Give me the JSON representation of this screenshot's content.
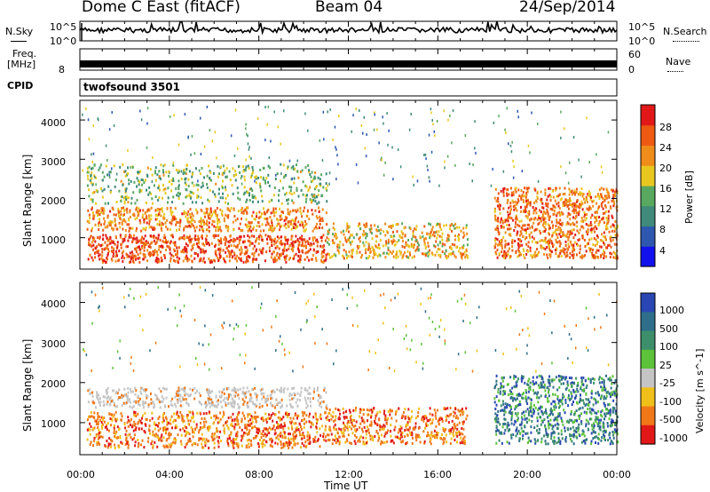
{
  "header": {
    "title": "Dome C East (fitACF)",
    "beam": "Beam 04",
    "date": "24/Sep/2014"
  },
  "strip_labels": {
    "nsky": "N.Sky",
    "nsky_top": "10^5",
    "nsky_bottom": "10^0",
    "nsearch": "N.Search",
    "nsearch_top": "10^5",
    "nsearch_bottom": "10^0",
    "freq": "Freq.",
    "freq_unit": "[MHz]",
    "freq_tick": "8",
    "nave": "Nave",
    "nave_top": "60",
    "nave_bottom": "0",
    "cpid": "CPID",
    "cpid_value": "twofsound 3501"
  },
  "chart_data": [
    {
      "type": "heatmap",
      "name": "power",
      "ylabel": "Slant Range [km]",
      "yticks": [
        "1000",
        "2000",
        "3000",
        "4000"
      ],
      "ylim": [
        200,
        4500
      ],
      "colorbar": {
        "label": "Power [dB]",
        "ticks": [
          "4",
          "8",
          "12",
          "16",
          "20",
          "24",
          "28"
        ],
        "range": [
          0,
          32
        ],
        "colors": [
          "#1111ee",
          "#2e57b0",
          "#3f8a7a",
          "#58a860",
          "#e8c81f",
          "#f08c1a",
          "#ee5a12",
          "#e21818"
        ]
      },
      "regions": [
        {
          "t": [
            0.3,
            11.0
          ],
          "r": [
            1200,
            1800
          ],
          "level": 0.7
        },
        {
          "t": [
            0.3,
            11.0
          ],
          "r": [
            400,
            1100
          ],
          "level": 0.85
        },
        {
          "t": [
            0.3,
            11.0
          ],
          "r": [
            1900,
            2900
          ],
          "level": 0.35
        },
        {
          "t": [
            11.0,
            17.3
          ],
          "r": [
            500,
            1400
          ],
          "level": 0.6
        },
        {
          "t": [
            18.5,
            24.0
          ],
          "r": [
            500,
            2300
          ],
          "level": 0.75
        }
      ]
    },
    {
      "type": "heatmap",
      "name": "velocity",
      "ylabel": "Slant Range [km]",
      "yticks": [
        "1000",
        "2000",
        "3000",
        "4000"
      ],
      "ylim": [
        200,
        4500
      ],
      "xlabel": "Time UT",
      "xticks": [
        "00:00",
        "04:00",
        "08:00",
        "12:00",
        "16:00",
        "20:00",
        "00:00"
      ],
      "xlim": [
        0,
        24
      ],
      "colorbar": {
        "label": "Velocity [m s^-1]",
        "ticks": [
          "1000",
          "500",
          "100",
          "25",
          "-25",
          "-100",
          "-500",
          "-1000"
        ],
        "colors": [
          "#2a46b4",
          "#2e6e8a",
          "#3d8e6a",
          "#5cc23a",
          "#c4c4c4",
          "#f0c01a",
          "#f07818",
          "#e21818"
        ]
      },
      "regions": [
        {
          "t": [
            0.3,
            11.0
          ],
          "r": [
            1400,
            1900
          ],
          "class": "ground-scatter"
        },
        {
          "t": [
            0.3,
            11.0
          ],
          "r": [
            400,
            1300
          ],
          "class": "negative"
        },
        {
          "t": [
            11.0,
            17.3
          ],
          "r": [
            500,
            1400
          ],
          "class": "negative"
        },
        {
          "t": [
            18.5,
            24.0
          ],
          "r": [
            500,
            2200
          ],
          "class": "positive"
        }
      ]
    }
  ]
}
